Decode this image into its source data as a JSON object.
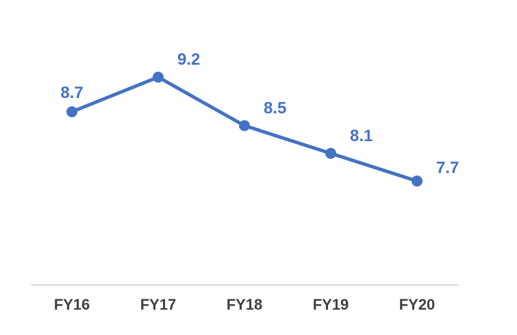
{
  "chart_data": {
    "type": "line",
    "categories": [
      "FY16",
      "FY17",
      "FY18",
      "FY19",
      "FY20"
    ],
    "values": [
      8.7,
      9.2,
      8.5,
      8.1,
      7.7
    ],
    "data_labels": [
      "8.7",
      "9.2",
      "8.5",
      "8.1",
      "7.7"
    ],
    "title": "",
    "xlabel": "",
    "ylabel": "",
    "ylim": [
      6.2,
      9.7
    ],
    "grid": false,
    "legend": "none",
    "line_color": "#4472C4",
    "axis_color": "#D9D9D9",
    "tick_label_color": "#404040"
  }
}
